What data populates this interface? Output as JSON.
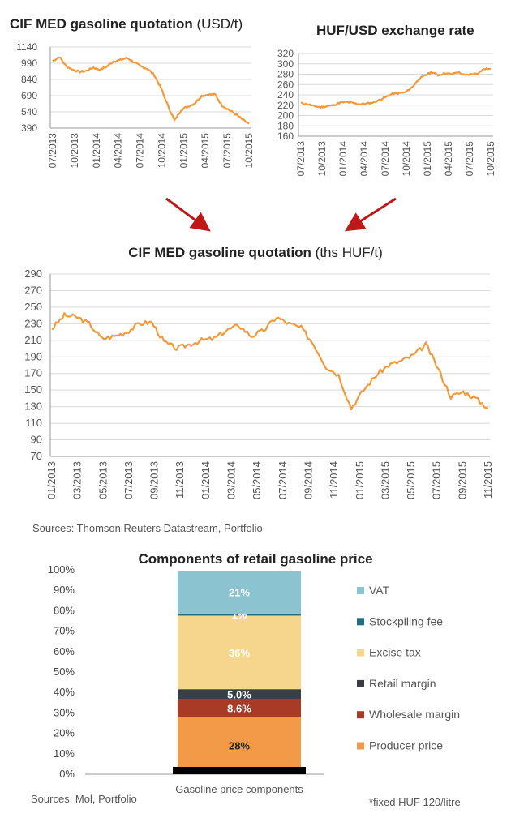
{
  "charts": {
    "usd": {
      "title_bold": "CIF MED gasoline quotation",
      "title_unit": "(USD/t)",
      "yticks": [
        "1140",
        "990",
        "840",
        "690",
        "540",
        "390"
      ],
      "xticks": [
        "07/2013",
        "10/2013",
        "01/2014",
        "04/2014",
        "07/2014",
        "10/2014",
        "01/2015",
        "04/2015",
        "07/2015",
        "10/2015"
      ]
    },
    "huf_usd": {
      "title": "HUF/USD exchange rate",
      "yticks": [
        "320",
        "300",
        "280",
        "260",
        "240",
        "220",
        "200",
        "180",
        "160"
      ],
      "xticks": [
        "07/2013",
        "10/2013",
        "01/2014",
        "04/2014",
        "07/2014",
        "10/2014",
        "01/2015",
        "04/2015",
        "07/2015",
        "10/2015"
      ]
    },
    "huf": {
      "title_bold": "CIF MED  gasoline quotation",
      "title_unit": "(ths HUF/t)",
      "yticks": [
        "290",
        "270",
        "250",
        "230",
        "210",
        "190",
        "170",
        "150",
        "130",
        "110",
        "90",
        "70"
      ],
      "xticks": [
        "01/2013",
        "03/2013",
        "05/2013",
        "07/2013",
        "09/2013",
        "11/2013",
        "01/2014",
        "03/2014",
        "05/2014",
        "07/2014",
        "09/2014",
        "11/2014",
        "01/2015",
        "03/2015",
        "05/2015",
        "07/2015",
        "09/2015",
        "11/2015"
      ],
      "sources": "Sources: Thomson Reuters Datastream, Portfolio"
    },
    "components": {
      "title": "Components of retail gasoline price",
      "yticks": [
        "100%",
        "90%",
        "80%",
        "70%",
        "60%",
        "50%",
        "40%",
        "30%",
        "20%",
        "10%",
        "0%"
      ],
      "xlabel": "Gasoline price components",
      "sources": "Sources: Mol, Portfolio",
      "note": "*fixed HUF 120/litre"
    }
  },
  "chart_data": [
    {
      "type": "line",
      "title": "CIF MED gasoline quotation (USD/t)",
      "x": [
        "07/2013",
        "08/2013",
        "09/2013",
        "10/2013",
        "11/2013",
        "12/2013",
        "01/2014",
        "02/2014",
        "03/2014",
        "04/2014",
        "05/2014",
        "06/2014",
        "07/2014",
        "08/2014",
        "09/2014",
        "10/2014",
        "11/2014",
        "12/2014",
        "01/2015",
        "02/2015",
        "03/2015",
        "04/2015",
        "05/2015",
        "06/2015",
        "07/2015",
        "08/2015",
        "09/2015",
        "10/2015",
        "11/2015",
        "12/2015"
      ],
      "y": [
        1010,
        1050,
        960,
        930,
        910,
        920,
        950,
        930,
        960,
        1010,
        1020,
        1040,
        1000,
        960,
        940,
        880,
        760,
        600,
        460,
        560,
        590,
        620,
        690,
        700,
        700,
        600,
        560,
        520,
        470,
        430
      ],
      "ylim": [
        390,
        1140
      ],
      "color": "#f29a3b"
    },
    {
      "type": "line",
      "title": "HUF/USD exchange rate",
      "x": [
        "07/2013",
        "08/2013",
        "09/2013",
        "10/2013",
        "11/2013",
        "12/2013",
        "01/2014",
        "02/2014",
        "03/2014",
        "04/2014",
        "05/2014",
        "06/2014",
        "07/2014",
        "08/2014",
        "09/2014",
        "10/2014",
        "11/2014",
        "12/2014",
        "01/2015",
        "02/2015",
        "03/2015",
        "04/2015",
        "05/2015",
        "06/2015",
        "07/2015",
        "08/2015",
        "09/2015",
        "10/2015",
        "11/2015",
        "12/2015"
      ],
      "y": [
        224,
        222,
        218,
        216,
        218,
        220,
        225,
        226,
        224,
        222,
        223,
        225,
        230,
        236,
        242,
        243,
        245,
        255,
        270,
        278,
        284,
        278,
        282,
        280,
        284,
        278,
        280,
        282,
        290,
        290
      ],
      "ylim": [
        160,
        320
      ],
      "color": "#f29a3b"
    },
    {
      "type": "line",
      "title": "CIF MED gasoline quotation (ths HUF/t)",
      "x": [
        "01/2013",
        "02/2013",
        "03/2013",
        "04/2013",
        "05/2013",
        "06/2013",
        "07/2013",
        "08/2013",
        "09/2013",
        "10/2013",
        "11/2013",
        "12/2013",
        "01/2014",
        "02/2014",
        "03/2014",
        "04/2014",
        "05/2014",
        "06/2014",
        "07/2014",
        "08/2014",
        "09/2014",
        "10/2014",
        "11/2014",
        "12/2014",
        "01/2015",
        "02/2015",
        "03/2015",
        "04/2015",
        "05/2015",
        "06/2015",
        "07/2015",
        "08/2015",
        "09/2015",
        "10/2015",
        "11/2015",
        "12/2015"
      ],
      "y": [
        224,
        240,
        238,
        230,
        212,
        215,
        220,
        230,
        232,
        208,
        200,
        205,
        210,
        212,
        222,
        228,
        215,
        222,
        238,
        230,
        225,
        205,
        178,
        168,
        128,
        150,
        168,
        180,
        185,
        192,
        205,
        175,
        142,
        148,
        140,
        128
      ],
      "ylim": [
        70,
        290
      ],
      "color": "#f29a3b"
    },
    {
      "type": "bar",
      "title": "Components of retail gasoline price",
      "categories": [
        "Gasoline price components"
      ],
      "series": [
        {
          "name": "Producer price",
          "values": [
            28
          ],
          "label": "28%",
          "color": "#f29a47"
        },
        {
          "name": "Wholesale margin",
          "values": [
            8.6
          ],
          "label": "8.6%",
          "color": "#a93a26"
        },
        {
          "name": "Retail margin",
          "values": [
            5.0
          ],
          "label": "5.0%",
          "color": "#3a3f46"
        },
        {
          "name": "Excise tax",
          "values": [
            36
          ],
          "label": "36%",
          "color": "#f5d68c"
        },
        {
          "name": "Stockpiling fee",
          "values": [
            1
          ],
          "label": "1%",
          "color": "#1f6e80"
        },
        {
          "name": "VAT",
          "values": [
            21
          ],
          "label": "21%",
          "color": "#8bc4d0"
        }
      ],
      "stacked": true,
      "ylim": [
        0,
        100
      ]
    }
  ]
}
